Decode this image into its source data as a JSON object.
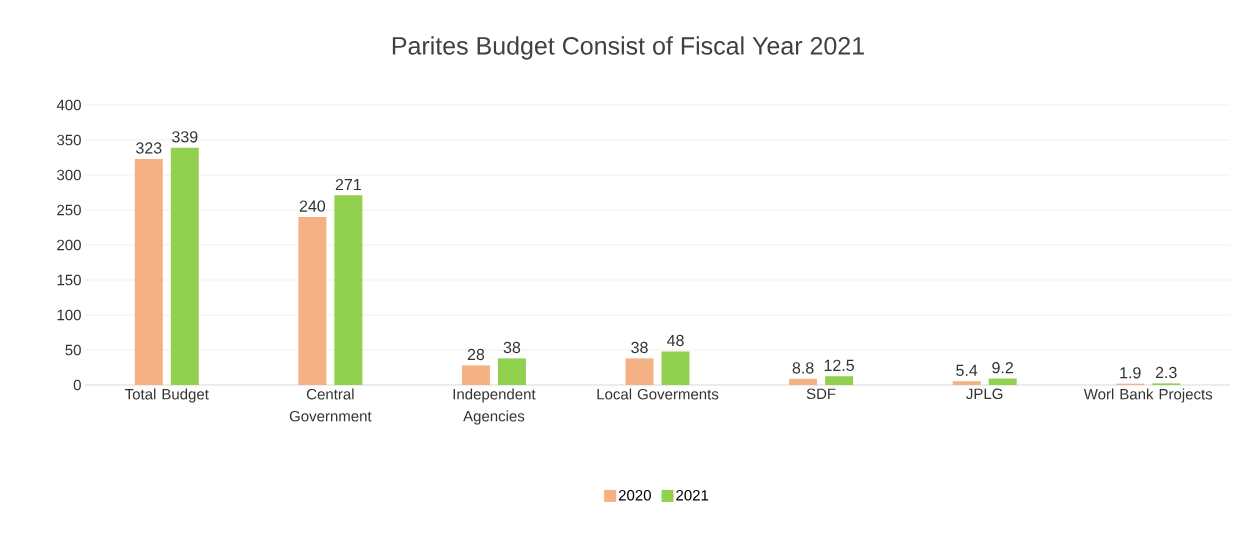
{
  "chart_data": {
    "type": "bar",
    "title": "Parites Budget Consist of Fiscal Year 2021",
    "categories": [
      "Total Budget",
      "Central Government",
      "Independent Agencies",
      "Local Goverments",
      "SDF",
      "JPLG",
      "Worl Bank Projects"
    ],
    "series": [
      {
        "name": "2020",
        "color": "#f4b183",
        "values": [
          323,
          240,
          28,
          38,
          8.8,
          5.4,
          1.9
        ]
      },
      {
        "name": "2021",
        "color": "#92d050",
        "values": [
          339,
          271,
          38,
          48,
          12.5,
          9.2,
          2.3
        ]
      }
    ],
    "ylim": [
      0,
      400
    ],
    "yticks": [
      0,
      50,
      100,
      150,
      200,
      250,
      300,
      350,
      400
    ],
    "grid": "y",
    "legend": "bottom",
    "data_labels": true
  }
}
